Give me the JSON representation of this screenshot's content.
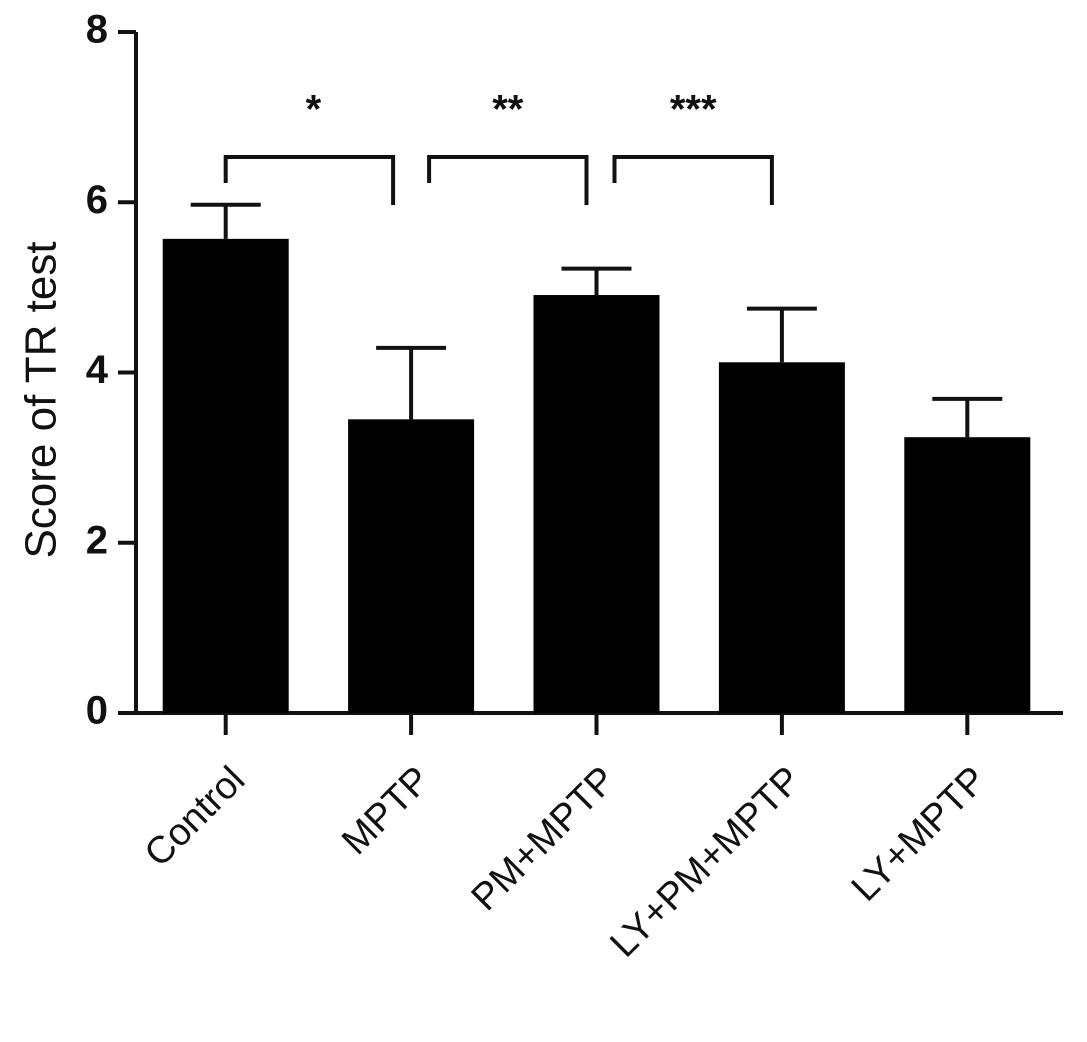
{
  "chart_data": {
    "type": "bar",
    "y_label": "Score of TR test",
    "categories": [
      "Control",
      "MPTP",
      "PM+MPTP",
      "LY+PM+MPTP",
      "LY+MPTP"
    ],
    "values": [
      5.57,
      3.45,
      4.91,
      4.12,
      3.24
    ],
    "errors": [
      0.4,
      0.84,
      0.31,
      0.63,
      0.45
    ],
    "color": "#000000",
    "ylim": [
      0,
      8
    ],
    "yticks": [
      0,
      2,
      4,
      6,
      8
    ],
    "annotations": [
      "*",
      "**",
      "***"
    ],
    "grid": false
  }
}
